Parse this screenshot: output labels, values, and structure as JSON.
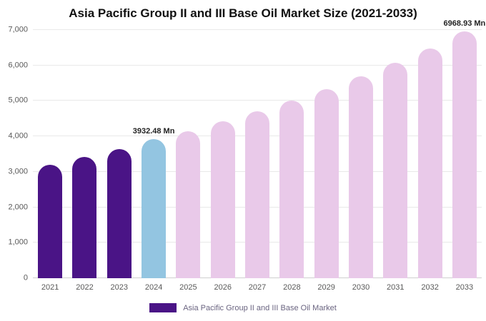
{
  "chart_data": {
    "type": "bar",
    "title": "Asia Pacific Group II and III Base Oil Market Size (2021-2033)",
    "categories": [
      "2021",
      "2022",
      "2023",
      "2024",
      "2025",
      "2026",
      "2027",
      "2028",
      "2029",
      "2030",
      "2031",
      "2032",
      "2033"
    ],
    "values": [
      3200,
      3420,
      3640,
      3932.48,
      4150,
      4430,
      4700,
      5010,
      5330,
      5700,
      6070,
      6470,
      6968.93
    ],
    "bar_colors": [
      "#4a1486",
      "#4a1486",
      "#4a1486",
      "#93c5e1",
      "#e9c9e9",
      "#e9c9e9",
      "#e9c9e9",
      "#e9c9e9",
      "#e9c9e9",
      "#e9c9e9",
      "#e9c9e9",
      "#e9c9e9",
      "#e9c9e9"
    ],
    "ylim": [
      0,
      7000
    ],
    "yticks": [
      {
        "value": 0,
        "label": "0"
      },
      {
        "value": 1000,
        "label": "1,000"
      },
      {
        "value": 2000,
        "label": "2,000"
      },
      {
        "value": 3000,
        "label": "3,000"
      },
      {
        "value": 4000,
        "label": "4,000"
      },
      {
        "value": 5000,
        "label": "5,000"
      },
      {
        "value": 6000,
        "label": "6,000"
      },
      {
        "value": 7000,
        "label": "7,000"
      }
    ],
    "annotations": [
      {
        "index": 3,
        "text": "3932.48 Mn"
      },
      {
        "index": 12,
        "text": "6968.93 Mn"
      }
    ],
    "grid": "horizontal",
    "legend_position": "bottom-center",
    "legend_label": "Asia Pacific Group II and III Base Oil Market",
    "legend_color": "#4a1486",
    "colors": {
      "historical": "#4a1486",
      "base_year": "#93c5e1",
      "forecast": "#e9c9e9"
    }
  }
}
